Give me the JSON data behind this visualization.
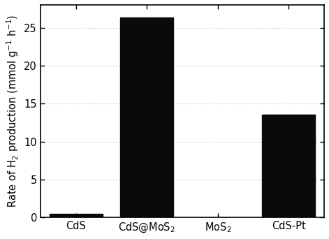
{
  "categories": [
    "CdS",
    "CdS@MoS$_2$",
    "MoS$_2$",
    "CdS-Pt"
  ],
  "values": [
    0.5,
    26.3,
    0.0,
    13.6
  ],
  "bar_color": "#0a0a0a",
  "ylabel": "Rate of H$_2$ production (mmol g$^{-1}$ h$^{-1}$)",
  "ylim": [
    0,
    28
  ],
  "yticks": [
    0,
    5,
    10,
    15,
    20,
    25
  ],
  "bar_width": 0.75,
  "background_color": "#ffffff",
  "tick_label_fontsize": 10.5,
  "ylabel_fontsize": 10.5,
  "grid_color": "#c8c8c8",
  "grid_linestyle": ":"
}
